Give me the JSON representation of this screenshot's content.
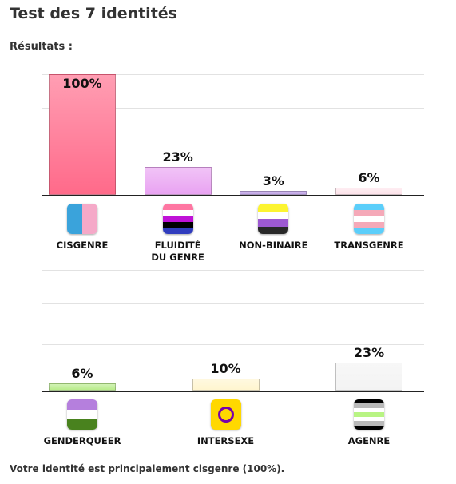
{
  "title": "Test des 7 identités",
  "subtitle": "Résultats :",
  "chart_data": [
    {
      "type": "bar",
      "categories": [
        "CISGENRE",
        "FLUIDITÉ\nDU GENRE",
        "NON-BINAIRE",
        "TRANSGENRE"
      ],
      "values": [
        100,
        23,
        3,
        6
      ],
      "value_labels": [
        "100%",
        "23%",
        "3%",
        "6%"
      ],
      "colors": [
        "#ff6a8a",
        "#e9a3f2",
        "#bfa3e6",
        "#fde3ea"
      ],
      "ylim": [
        0,
        100
      ]
    },
    {
      "type": "bar",
      "categories": [
        "GENDERQUEER",
        "INTERSEXE",
        "AGENRE"
      ],
      "values": [
        6,
        10,
        23
      ],
      "value_labels": [
        "6%",
        "10%",
        "23%"
      ],
      "colors": [
        "#b9ec8c",
        "#fff5cf",
        "#f3f3f3"
      ],
      "ylim": [
        0,
        100
      ]
    }
  ],
  "footer": "Votre identité est principalement cisgenre (100%)."
}
